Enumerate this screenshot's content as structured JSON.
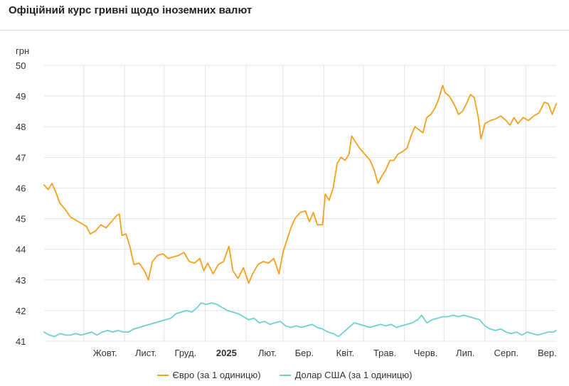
{
  "page": {
    "title": "Офіційний курс гривні щодо іноземних валют"
  },
  "colors": {
    "euro": "#f5a020",
    "usd": "#6fd0d0",
    "grid": "#e3e3e3",
    "axis_text": "#333333"
  },
  "chart_data": {
    "type": "line",
    "title": "Офіційний курс гривні щодо іноземних валют",
    "ylabel": "грн",
    "ylim": [
      41,
      50
    ],
    "yticks": [
      50,
      49,
      48,
      47,
      46,
      45,
      44,
      43,
      42,
      41
    ],
    "xlim": [
      "2024-09-01",
      "2025-09-24"
    ],
    "xticks": [
      {
        "date": "2024-10-01",
        "label": "Жовт."
      },
      {
        "date": "2024-11-01",
        "label": "Лист."
      },
      {
        "date": "2024-12-01",
        "label": "Груд."
      },
      {
        "date": "2025-01-01",
        "label": "2025"
      },
      {
        "date": "2025-02-01",
        "label": "Лют."
      },
      {
        "date": "2025-03-01",
        "label": "Бер."
      },
      {
        "date": "2025-04-01",
        "label": "Квіт."
      },
      {
        "date": "2025-05-01",
        "label": "Трав."
      },
      {
        "date": "2025-06-01",
        "label": "Черв."
      },
      {
        "date": "2025-07-01",
        "label": "Лип."
      },
      {
        "date": "2025-08-01",
        "label": "Серп."
      },
      {
        "date": "2025-09-01",
        "label": "Вер."
      }
    ],
    "grid": true,
    "legend_position": "bottom",
    "series": [
      {
        "name": "Євро (за 1 одиницю)",
        "color": "#f5a020",
        "points": [
          [
            "2024-09-01",
            46.1
          ],
          [
            "2024-09-04",
            45.95
          ],
          [
            "2024-09-07",
            46.15
          ],
          [
            "2024-09-10",
            45.85
          ],
          [
            "2024-09-13",
            45.5
          ],
          [
            "2024-09-17",
            45.3
          ],
          [
            "2024-09-21",
            45.05
          ],
          [
            "2024-09-25",
            44.95
          ],
          [
            "2024-09-29",
            44.85
          ],
          [
            "2024-10-03",
            44.75
          ],
          [
            "2024-10-06",
            44.5
          ],
          [
            "2024-10-10",
            44.6
          ],
          [
            "2024-10-14",
            44.8
          ],
          [
            "2024-10-18",
            44.7
          ],
          [
            "2024-10-22",
            44.9
          ],
          [
            "2024-10-26",
            45.1
          ],
          [
            "2024-10-28",
            45.15
          ],
          [
            "2024-10-30",
            44.45
          ],
          [
            "2024-11-02",
            44.5
          ],
          [
            "2024-11-05",
            44.1
          ],
          [
            "2024-11-08",
            43.5
          ],
          [
            "2024-11-12",
            43.55
          ],
          [
            "2024-11-16",
            43.3
          ],
          [
            "2024-11-19",
            43.0
          ],
          [
            "2024-11-22",
            43.6
          ],
          [
            "2024-11-26",
            43.8
          ],
          [
            "2024-11-30",
            43.85
          ],
          [
            "2024-12-04",
            43.7
          ],
          [
            "2024-12-08",
            43.75
          ],
          [
            "2024-12-12",
            43.8
          ],
          [
            "2024-12-16",
            43.9
          ],
          [
            "2024-12-20",
            43.6
          ],
          [
            "2024-12-24",
            43.55
          ],
          [
            "2024-12-28",
            43.7
          ],
          [
            "2024-12-31",
            43.3
          ],
          [
            "2025-01-03",
            43.55
          ],
          [
            "2025-01-07",
            43.2
          ],
          [
            "2025-01-11",
            43.5
          ],
          [
            "2025-01-15",
            43.6
          ],
          [
            "2025-01-19",
            44.1
          ],
          [
            "2025-01-22",
            43.3
          ],
          [
            "2025-01-26",
            43.05
          ],
          [
            "2025-01-30",
            43.4
          ],
          [
            "2025-02-03",
            42.9
          ],
          [
            "2025-02-06",
            43.2
          ],
          [
            "2025-02-10",
            43.5
          ],
          [
            "2025-02-14",
            43.6
          ],
          [
            "2025-02-18",
            43.55
          ],
          [
            "2025-02-22",
            43.7
          ],
          [
            "2025-02-26",
            43.2
          ],
          [
            "2025-03-01",
            43.9
          ],
          [
            "2025-03-04",
            44.3
          ],
          [
            "2025-03-07",
            44.7
          ],
          [
            "2025-03-10",
            45.0
          ],
          [
            "2025-03-14",
            45.2
          ],
          [
            "2025-03-18",
            45.25
          ],
          [
            "2025-03-21",
            44.9
          ],
          [
            "2025-03-24",
            45.2
          ],
          [
            "2025-03-27",
            44.8
          ],
          [
            "2025-03-31",
            44.8
          ],
          [
            "2025-04-02",
            45.8
          ],
          [
            "2025-04-05",
            45.6
          ],
          [
            "2025-04-08",
            46.0
          ],
          [
            "2025-04-11",
            46.8
          ],
          [
            "2025-04-14",
            47.0
          ],
          [
            "2025-04-17",
            46.9
          ],
          [
            "2025-04-20",
            47.1
          ],
          [
            "2025-04-22",
            47.7
          ],
          [
            "2025-04-25",
            47.5
          ],
          [
            "2025-04-28",
            47.3
          ],
          [
            "2025-05-02",
            47.1
          ],
          [
            "2025-05-06",
            46.9
          ],
          [
            "2025-05-09",
            46.6
          ],
          [
            "2025-05-12",
            46.15
          ],
          [
            "2025-05-15",
            46.4
          ],
          [
            "2025-05-18",
            46.6
          ],
          [
            "2025-05-21",
            46.9
          ],
          [
            "2025-05-24",
            46.9
          ],
          [
            "2025-05-27",
            47.1
          ],
          [
            "2025-05-31",
            47.2
          ],
          [
            "2025-06-03",
            47.3
          ],
          [
            "2025-06-06",
            47.7
          ],
          [
            "2025-06-09",
            48.0
          ],
          [
            "2025-06-12",
            47.9
          ],
          [
            "2025-06-15",
            47.8
          ],
          [
            "2025-06-18",
            48.3
          ],
          [
            "2025-06-21",
            48.4
          ],
          [
            "2025-06-24",
            48.6
          ],
          [
            "2025-06-27",
            48.9
          ],
          [
            "2025-06-30",
            49.35
          ],
          [
            "2025-07-02",
            49.1
          ],
          [
            "2025-07-05",
            49.0
          ],
          [
            "2025-07-09",
            48.7
          ],
          [
            "2025-07-12",
            48.4
          ],
          [
            "2025-07-15",
            48.5
          ],
          [
            "2025-07-18",
            48.75
          ],
          [
            "2025-07-21",
            49.05
          ],
          [
            "2025-07-24",
            48.95
          ],
          [
            "2025-07-27",
            48.3
          ],
          [
            "2025-07-29",
            47.6
          ],
          [
            "2025-08-01",
            48.1
          ],
          [
            "2025-08-05",
            48.2
          ],
          [
            "2025-08-09",
            48.25
          ],
          [
            "2025-08-13",
            48.35
          ],
          [
            "2025-08-17",
            48.2
          ],
          [
            "2025-08-20",
            48.05
          ],
          [
            "2025-08-23",
            48.3
          ],
          [
            "2025-08-26",
            48.1
          ],
          [
            "2025-08-30",
            48.3
          ],
          [
            "2025-09-03",
            48.2
          ],
          [
            "2025-09-07",
            48.35
          ],
          [
            "2025-09-11",
            48.45
          ],
          [
            "2025-09-15",
            48.8
          ],
          [
            "2025-09-18",
            48.75
          ],
          [
            "2025-09-21",
            48.4
          ],
          [
            "2025-09-24",
            48.75
          ]
        ]
      },
      {
        "name": "Долар США (за 1 одиницю)",
        "color": "#6fd0d0",
        "points": [
          [
            "2024-09-01",
            41.3
          ],
          [
            "2024-09-05",
            41.2
          ],
          [
            "2024-09-09",
            41.15
          ],
          [
            "2024-09-13",
            41.25
          ],
          [
            "2024-09-17",
            41.2
          ],
          [
            "2024-09-21",
            41.2
          ],
          [
            "2024-09-25",
            41.25
          ],
          [
            "2024-09-29",
            41.2
          ],
          [
            "2024-10-03",
            41.25
          ],
          [
            "2024-10-07",
            41.3
          ],
          [
            "2024-10-11",
            41.2
          ],
          [
            "2024-10-15",
            41.3
          ],
          [
            "2024-10-19",
            41.35
          ],
          [
            "2024-10-23",
            41.3
          ],
          [
            "2024-10-27",
            41.35
          ],
          [
            "2024-10-31",
            41.3
          ],
          [
            "2024-11-04",
            41.3
          ],
          [
            "2024-11-08",
            41.4
          ],
          [
            "2024-11-12",
            41.45
          ],
          [
            "2024-11-16",
            41.5
          ],
          [
            "2024-11-20",
            41.55
          ],
          [
            "2024-11-24",
            41.6
          ],
          [
            "2024-11-28",
            41.65
          ],
          [
            "2024-12-02",
            41.7
          ],
          [
            "2024-12-06",
            41.75
          ],
          [
            "2024-12-10",
            41.9
          ],
          [
            "2024-12-14",
            41.95
          ],
          [
            "2024-12-18",
            42.0
          ],
          [
            "2024-12-22",
            41.95
          ],
          [
            "2024-12-26",
            42.1
          ],
          [
            "2024-12-29",
            42.25
          ],
          [
            "2025-01-02",
            42.2
          ],
          [
            "2025-01-06",
            42.25
          ],
          [
            "2025-01-10",
            42.2
          ],
          [
            "2025-01-14",
            42.1
          ],
          [
            "2025-01-18",
            42.0
          ],
          [
            "2025-01-22",
            41.95
          ],
          [
            "2025-01-26",
            41.9
          ],
          [
            "2025-01-30",
            41.8
          ],
          [
            "2025-02-03",
            41.7
          ],
          [
            "2025-02-07",
            41.75
          ],
          [
            "2025-02-11",
            41.6
          ],
          [
            "2025-02-15",
            41.65
          ],
          [
            "2025-02-19",
            41.55
          ],
          [
            "2025-02-23",
            41.6
          ],
          [
            "2025-02-27",
            41.65
          ],
          [
            "2025-03-03",
            41.5
          ],
          [
            "2025-03-07",
            41.45
          ],
          [
            "2025-03-11",
            41.5
          ],
          [
            "2025-03-15",
            41.45
          ],
          [
            "2025-03-19",
            41.5
          ],
          [
            "2025-03-23",
            41.55
          ],
          [
            "2025-03-27",
            41.45
          ],
          [
            "2025-03-31",
            41.4
          ],
          [
            "2025-04-04",
            41.3
          ],
          [
            "2025-04-08",
            41.25
          ],
          [
            "2025-04-12",
            41.15
          ],
          [
            "2025-04-16",
            41.3
          ],
          [
            "2025-04-20",
            41.45
          ],
          [
            "2025-04-24",
            41.6
          ],
          [
            "2025-04-28",
            41.55
          ],
          [
            "2025-05-02",
            41.5
          ],
          [
            "2025-05-06",
            41.45
          ],
          [
            "2025-05-10",
            41.5
          ],
          [
            "2025-05-14",
            41.55
          ],
          [
            "2025-05-18",
            41.5
          ],
          [
            "2025-05-22",
            41.55
          ],
          [
            "2025-05-26",
            41.45
          ],
          [
            "2025-05-30",
            41.5
          ],
          [
            "2025-06-03",
            41.55
          ],
          [
            "2025-06-07",
            41.6
          ],
          [
            "2025-06-11",
            41.7
          ],
          [
            "2025-06-14",
            41.85
          ],
          [
            "2025-06-18",
            41.6
          ],
          [
            "2025-06-22",
            41.7
          ],
          [
            "2025-06-26",
            41.75
          ],
          [
            "2025-06-30",
            41.8
          ],
          [
            "2025-07-04",
            41.8
          ],
          [
            "2025-07-08",
            41.85
          ],
          [
            "2025-07-12",
            41.8
          ],
          [
            "2025-07-16",
            41.85
          ],
          [
            "2025-07-20",
            41.8
          ],
          [
            "2025-07-24",
            41.75
          ],
          [
            "2025-07-28",
            41.7
          ],
          [
            "2025-08-01",
            41.5
          ],
          [
            "2025-08-05",
            41.4
          ],
          [
            "2025-08-09",
            41.35
          ],
          [
            "2025-08-13",
            41.4
          ],
          [
            "2025-08-17",
            41.3
          ],
          [
            "2025-08-21",
            41.25
          ],
          [
            "2025-08-25",
            41.3
          ],
          [
            "2025-08-29",
            41.2
          ],
          [
            "2025-09-02",
            41.3
          ],
          [
            "2025-09-06",
            41.25
          ],
          [
            "2025-09-10",
            41.2
          ],
          [
            "2025-09-14",
            41.25
          ],
          [
            "2025-09-18",
            41.3
          ],
          [
            "2025-09-22",
            41.3
          ],
          [
            "2025-09-24",
            41.35
          ]
        ]
      }
    ]
  }
}
